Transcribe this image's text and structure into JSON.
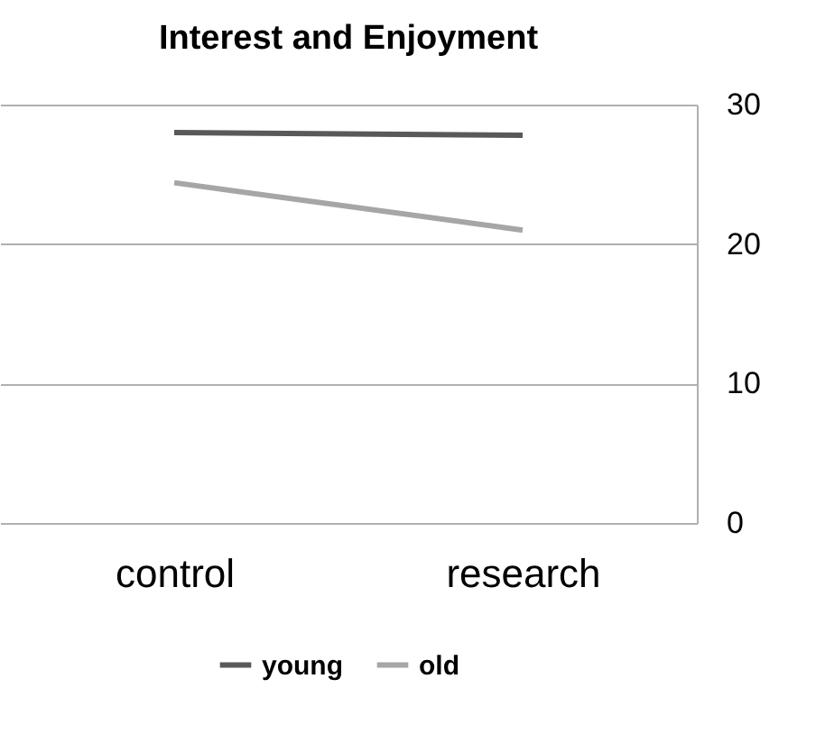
{
  "chart_data": {
    "type": "line",
    "title": "Interest and Enjoyment",
    "categories": [
      "control",
      "research"
    ],
    "series": [
      {
        "name": "young",
        "color": "#595959",
        "values": [
          28.0,
          27.8
        ]
      },
      {
        "name": "old",
        "color": "#a6a6a6",
        "values": [
          24.4,
          21.0
        ]
      }
    ],
    "ylim": [
      0,
      30
    ],
    "yticks": [
      0,
      10,
      20,
      30
    ],
    "grid": "y",
    "legend": "bottom",
    "marker": "none",
    "line_style": "solid"
  }
}
